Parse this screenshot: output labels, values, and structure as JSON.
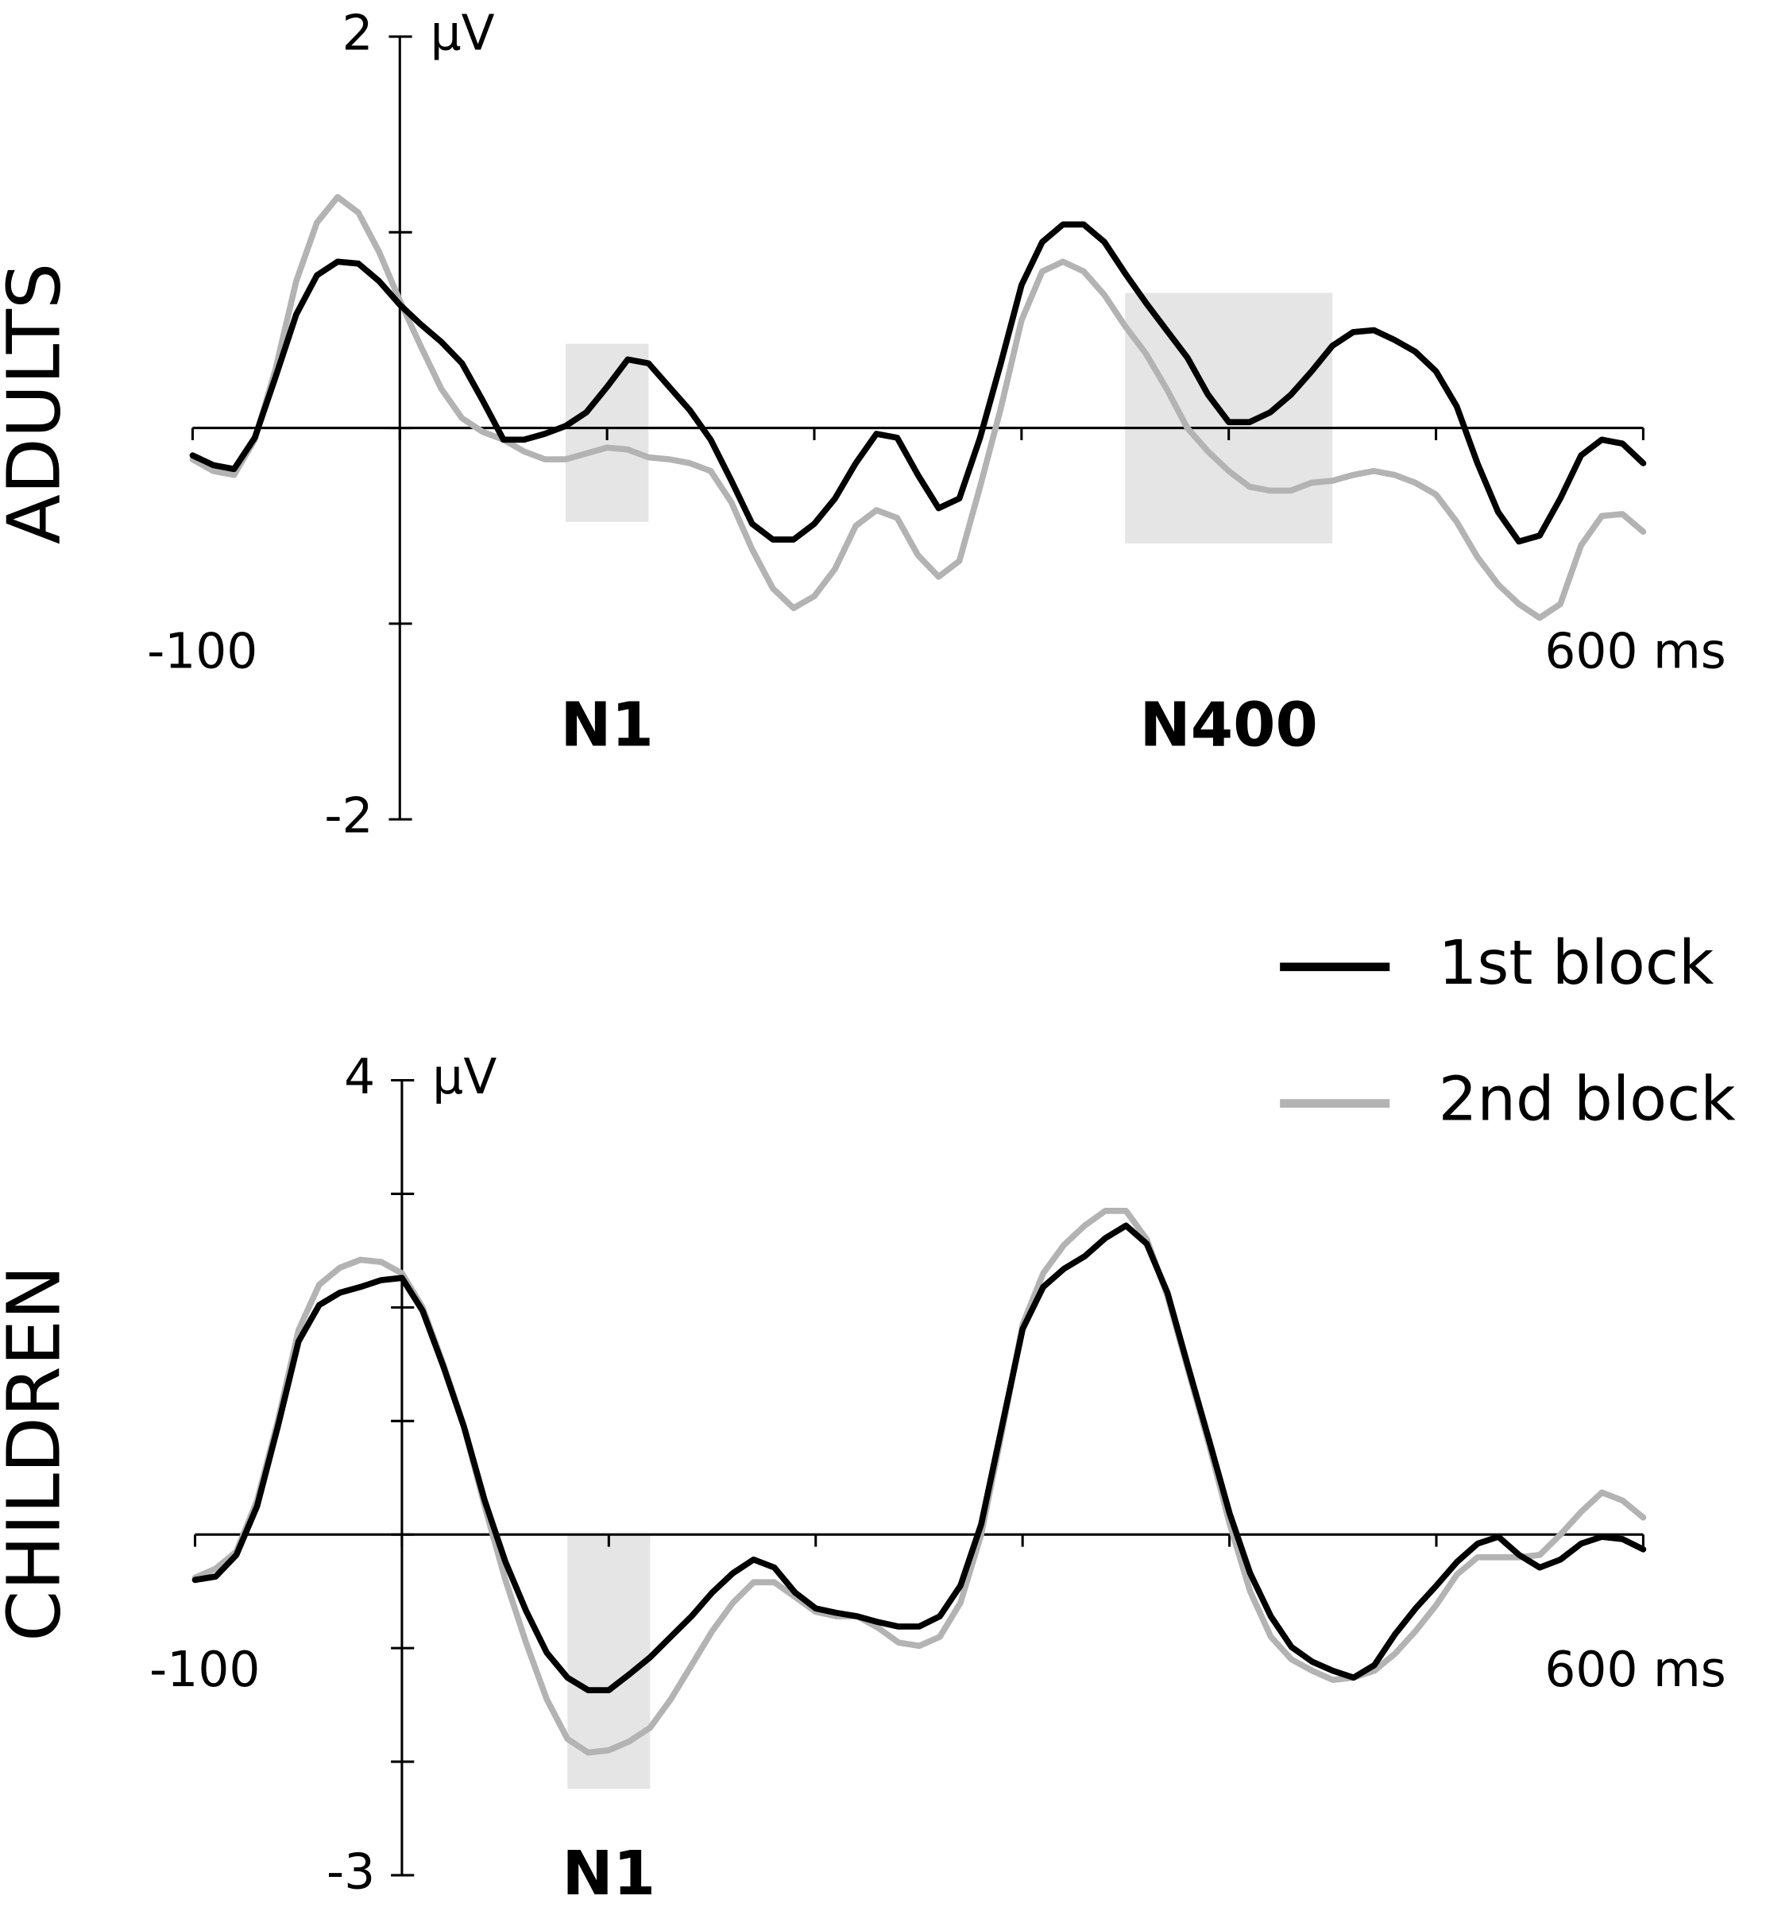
{
  "chart_data": [
    {
      "type": "line",
      "title": "ADULTS",
      "y_unit": "µV",
      "x": [
        -100,
        -90,
        -80,
        -70,
        -60,
        -50,
        -40,
        -30,
        -20,
        -10,
        0,
        10,
        20,
        30,
        40,
        50,
        60,
        70,
        80,
        90,
        100,
        110,
        120,
        130,
        140,
        150,
        160,
        170,
        180,
        190,
        200,
        210,
        220,
        230,
        240,
        250,
        260,
        270,
        280,
        290,
        300,
        310,
        320,
        330,
        340,
        350,
        360,
        370,
        380,
        390,
        400,
        410,
        420,
        430,
        440,
        450,
        460,
        470,
        480,
        490,
        500,
        510,
        520,
        530,
        540,
        550,
        560,
        570,
        580,
        590,
        600
      ],
      "series": [
        {
          "name": "1st block",
          "color": "#000000",
          "values": [
            -0.14,
            -0.19,
            -0.21,
            -0.05,
            0.26,
            0.58,
            0.78,
            0.85,
            0.84,
            0.75,
            0.63,
            0.53,
            0.44,
            0.33,
            0.14,
            -0.06,
            -0.06,
            -0.03,
            0.01,
            0.08,
            0.21,
            0.35,
            0.33,
            0.21,
            0.09,
            -0.06,
            -0.27,
            -0.49,
            -0.57,
            -0.57,
            -0.49,
            -0.36,
            -0.18,
            -0.03,
            -0.05,
            -0.24,
            -0.41,
            -0.36,
            -0.05,
            0.33,
            0.73,
            0.95,
            1.04,
            1.04,
            0.95,
            0.79,
            0.64,
            0.5,
            0.36,
            0.17,
            0.03,
            0.03,
            0.08,
            0.17,
            0.29,
            0.42,
            0.49,
            0.5,
            0.45,
            0.39,
            0.29,
            0.11,
            -0.18,
            -0.43,
            -0.58,
            -0.55,
            -0.36,
            -0.14,
            -0.06,
            -0.08,
            -0.18
          ]
        },
        {
          "name": "2nd block",
          "color": "#b3b3b3",
          "values": [
            -0.16,
            -0.22,
            -0.24,
            -0.06,
            0.3,
            0.75,
            1.05,
            1.18,
            1.1,
            0.9,
            0.65,
            0.42,
            0.2,
            0.05,
            -0.02,
            -0.06,
            -0.12,
            -0.16,
            -0.16,
            -0.13,
            -0.1,
            -0.11,
            -0.15,
            -0.16,
            -0.18,
            -0.22,
            -0.38,
            -0.62,
            -0.82,
            -0.92,
            -0.86,
            -0.72,
            -0.5,
            -0.42,
            -0.46,
            -0.65,
            -0.76,
            -0.68,
            -0.3,
            0.1,
            0.55,
            0.8,
            0.85,
            0.8,
            0.68,
            0.52,
            0.38,
            0.2,
            0.0,
            -0.12,
            -0.22,
            -0.3,
            -0.32,
            -0.32,
            -0.28,
            -0.27,
            -0.24,
            -0.22,
            -0.24,
            -0.28,
            -0.34,
            -0.48,
            -0.66,
            -0.8,
            -0.9,
            -0.97,
            -0.9,
            -0.6,
            -0.45,
            -0.44,
            -0.53
          ]
        }
      ],
      "xlim": [
        -100,
        600
      ],
      "xticks": [
        -100,
        {
          "value": 0,
          "label": null
        },
        {
          "value": 100,
          "label": null
        },
        {
          "value": 200,
          "label": null
        },
        {
          "value": 300,
          "label": null
        },
        {
          "value": 400,
          "label": null
        },
        {
          "value": 500,
          "label": null
        },
        {
          "value": 600,
          "label": "600 ms"
        }
      ],
      "ylim": [
        -2,
        2
      ],
      "yticks": [
        2,
        {
          "value": 1,
          "label": null
        },
        {
          "value": 0,
          "label": null
        },
        {
          "value": -1,
          "label": null
        },
        -2
      ],
      "regions": [
        {
          "label": "N1",
          "x": [
            80,
            120
          ],
          "y": [
            -0.48,
            0.43
          ],
          "color": "#e5e5e5"
        },
        {
          "label": "N400",
          "x": [
            350,
            450
          ],
          "y": [
            -0.59,
            0.69
          ],
          "color": "#e5e5e5"
        }
      ],
      "legend": "right"
    },
    {
      "type": "line",
      "title": "CHILDREN",
      "y_unit": "µV",
      "x": [
        -100,
        -90,
        -80,
        -70,
        -60,
        -50,
        -40,
        -30,
        -20,
        -10,
        0,
        10,
        20,
        30,
        40,
        50,
        60,
        70,
        80,
        90,
        100,
        110,
        120,
        130,
        140,
        150,
        160,
        170,
        180,
        190,
        200,
        210,
        220,
        230,
        240,
        250,
        260,
        270,
        280,
        290,
        300,
        310,
        320,
        330,
        340,
        350,
        360,
        370,
        380,
        390,
        400,
        410,
        420,
        430,
        440,
        450,
        460,
        470,
        480,
        490,
        500,
        510,
        520,
        530,
        540,
        550,
        560,
        570,
        580,
        590,
        600
      ],
      "series": [
        {
          "name": "1st block",
          "color": "#000000",
          "values": [
            -0.4,
            -0.37,
            -0.18,
            0.25,
            0.95,
            1.7,
            2.02,
            2.13,
            2.18,
            2.24,
            2.26,
            1.97,
            1.48,
            0.95,
            0.3,
            -0.24,
            -0.67,
            -1.04,
            -1.26,
            -1.37,
            -1.37,
            -1.23,
            -1.08,
            -0.9,
            -0.72,
            -0.51,
            -0.34,
            -0.22,
            -0.29,
            -0.51,
            -0.65,
            -0.69,
            -0.72,
            -0.77,
            -0.81,
            -0.81,
            -0.72,
            -0.45,
            0.09,
            0.95,
            1.81,
            2.18,
            2.34,
            2.45,
            2.61,
            2.72,
            2.56,
            2.13,
            1.48,
            0.84,
            0.19,
            -0.34,
            -0.72,
            -0.99,
            -1.12,
            -1.2,
            -1.26,
            -1.15,
            -0.88,
            -0.65,
            -0.45,
            -0.24,
            -0.08,
            -0.02,
            -0.18,
            -0.29,
            -0.22,
            -0.08,
            -0.02,
            -0.04,
            -0.13
          ]
        },
        {
          "name": "2nd block",
          "color": "#b3b3b3",
          "values": [
            -0.38,
            -0.3,
            -0.15,
            0.3,
            1.0,
            1.8,
            2.2,
            2.35,
            2.42,
            2.4,
            2.3,
            2.0,
            1.5,
            0.95,
            0.25,
            -0.4,
            -0.95,
            -1.45,
            -1.8,
            -1.92,
            -1.9,
            -1.82,
            -1.7,
            -1.45,
            -1.15,
            -0.85,
            -0.6,
            -0.42,
            -0.42,
            -0.55,
            -0.68,
            -0.72,
            -0.72,
            -0.82,
            -0.95,
            -0.98,
            -0.9,
            -0.6,
            0.0,
            0.9,
            1.85,
            2.3,
            2.55,
            2.72,
            2.85,
            2.85,
            2.6,
            2.1,
            1.45,
            0.8,
            0.1,
            -0.5,
            -0.9,
            -1.1,
            -1.2,
            -1.28,
            -1.26,
            -1.2,
            -1.05,
            -0.85,
            -0.62,
            -0.35,
            -0.2,
            -0.2,
            -0.2,
            -0.18,
            0.0,
            0.2,
            0.37,
            0.3,
            0.15
          ]
        }
      ],
      "xlim": [
        -100,
        600
      ],
      "xticks": [
        -100,
        {
          "value": 0,
          "label": null
        },
        {
          "value": 100,
          "label": null
        },
        {
          "value": 200,
          "label": null
        },
        {
          "value": 300,
          "label": null
        },
        {
          "value": 400,
          "label": null
        },
        {
          "value": 500,
          "label": null
        },
        {
          "value": 600,
          "label": "600 ms"
        }
      ],
      "ylim": [
        -3,
        4
      ],
      "yticks": [
        4,
        {
          "value": 3,
          "label": null
        },
        {
          "value": 2,
          "label": null
        },
        {
          "value": 1,
          "label": null
        },
        {
          "value": 0,
          "label": null
        },
        {
          "value": -1,
          "label": null
        },
        {
          "value": -2,
          "label": null
        },
        -3
      ],
      "regions": [
        {
          "label": "N1",
          "x": [
            80,
            120
          ],
          "y": [
            -2.24,
            0
          ],
          "color": "#e5e5e5"
        }
      ]
    }
  ]
}
